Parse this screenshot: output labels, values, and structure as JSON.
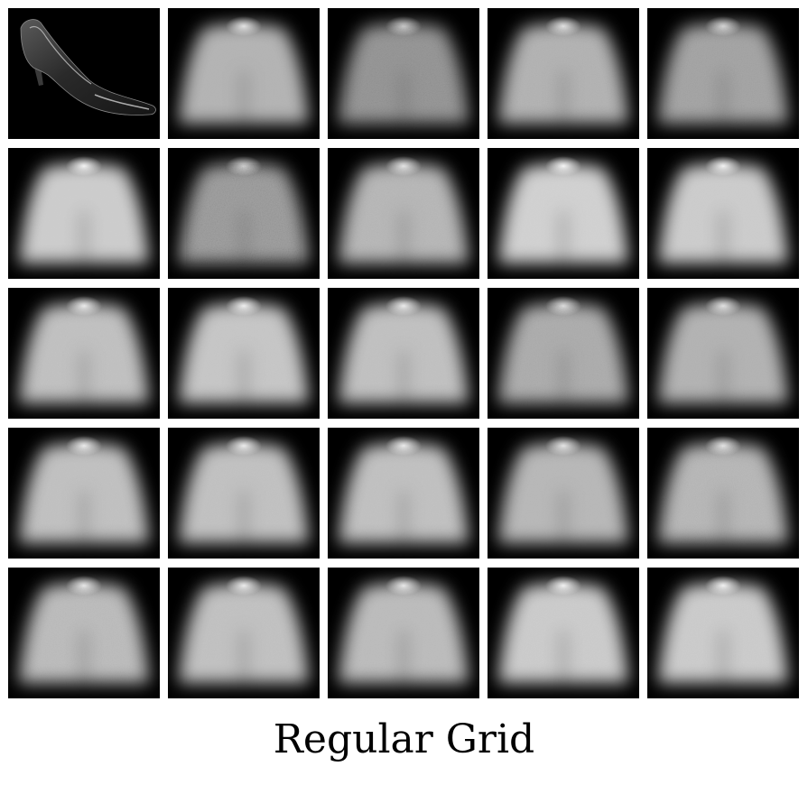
{
  "caption": "Regular Grid",
  "grid": {
    "rows": 5,
    "cols": 5,
    "tiles": [
      {
        "kind": "shoe",
        "icon": "high-heel-shoe-icon"
      },
      {
        "kind": "blur",
        "glow": 0.55,
        "noise": 0.1
      },
      {
        "kind": "blur",
        "glow": 0.25,
        "noise": 0.55
      },
      {
        "kind": "blur",
        "glow": 0.55,
        "noise": 0.25
      },
      {
        "kind": "blur",
        "glow": 0.4,
        "noise": 0.35
      },
      {
        "kind": "blur",
        "glow": 0.8,
        "noise": 0.05
      },
      {
        "kind": "blur",
        "glow": 0.35,
        "noise": 0.75
      },
      {
        "kind": "blur",
        "glow": 0.6,
        "noise": 0.3
      },
      {
        "kind": "blur",
        "glow": 0.85,
        "noise": 0.1
      },
      {
        "kind": "blur",
        "glow": 0.8,
        "noise": 0.1
      },
      {
        "kind": "blur",
        "glow": 0.7,
        "noise": 0.2
      },
      {
        "kind": "blur",
        "glow": 0.75,
        "noise": 0.15
      },
      {
        "kind": "blur",
        "glow": 0.7,
        "noise": 0.2
      },
      {
        "kind": "blur",
        "glow": 0.5,
        "noise": 0.35
      },
      {
        "kind": "blur",
        "glow": 0.55,
        "noise": 0.2
      },
      {
        "kind": "blur",
        "glow": 0.7,
        "noise": 0.2
      },
      {
        "kind": "blur",
        "glow": 0.7,
        "noise": 0.15
      },
      {
        "kind": "blur",
        "glow": 0.7,
        "noise": 0.2
      },
      {
        "kind": "blur",
        "glow": 0.6,
        "noise": 0.2
      },
      {
        "kind": "blur",
        "glow": 0.6,
        "noise": 0.3
      },
      {
        "kind": "blur",
        "glow": 0.65,
        "noise": 0.25
      },
      {
        "kind": "blur",
        "glow": 0.7,
        "noise": 0.15
      },
      {
        "kind": "blur",
        "glow": 0.65,
        "noise": 0.2
      },
      {
        "kind": "blur",
        "glow": 0.8,
        "noise": 0.15
      },
      {
        "kind": "blur",
        "glow": 0.8,
        "noise": 0.15
      }
    ]
  }
}
